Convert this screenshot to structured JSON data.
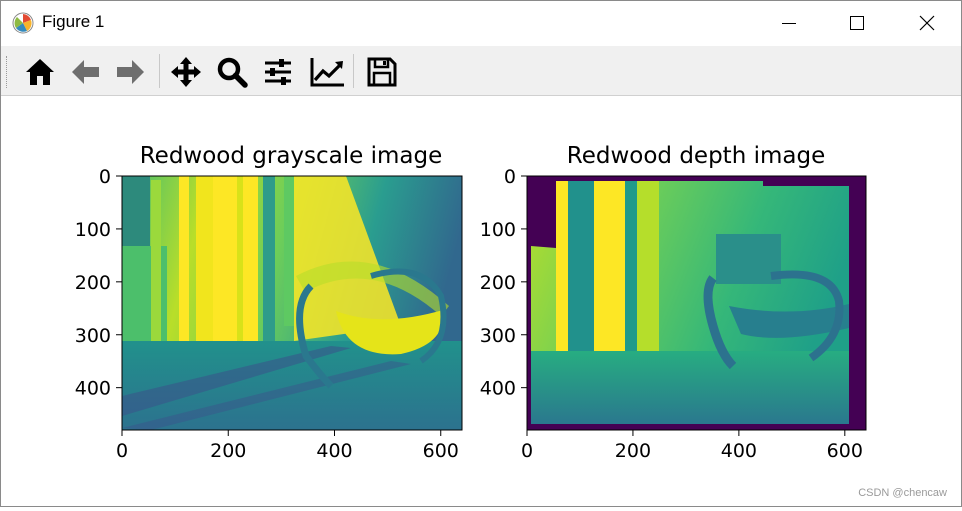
{
  "window": {
    "title": "Figure 1",
    "icons": [
      "matplotlib-app-icon",
      "minimize-icon",
      "maximize-icon",
      "close-icon"
    ]
  },
  "toolbar": {
    "buttons": [
      {
        "name": "home-button",
        "icon": "home-icon"
      },
      {
        "name": "back-button",
        "icon": "arrow-left-icon"
      },
      {
        "name": "forward-button",
        "icon": "arrow-right-icon"
      },
      {
        "name": "pan-button",
        "icon": "move-icon"
      },
      {
        "name": "zoom-button",
        "icon": "magnifier-icon"
      },
      {
        "name": "subplots-button",
        "icon": "sliders-icon"
      },
      {
        "name": "edit-axes-button",
        "icon": "line-chart-icon"
      },
      {
        "name": "save-button",
        "icon": "floppy-disk-icon"
      }
    ]
  },
  "chart_data": [
    {
      "type": "heatmap",
      "title": "Redwood grayscale image",
      "xlabel": "",
      "ylabel": "",
      "xlim": [
        0,
        640
      ],
      "ylim": [
        480,
        0
      ],
      "xticks": [
        0,
        200,
        400,
        600
      ],
      "yticks": [
        0,
        100,
        200,
        300,
        400
      ],
      "colormap": "viridis",
      "grid": false
    },
    {
      "type": "heatmap",
      "title": "Redwood depth image",
      "xlabel": "",
      "ylabel": "",
      "xlim": [
        0,
        640
      ],
      "ylim": [
        480,
        0
      ],
      "xticks": [
        0,
        200,
        400,
        600
      ],
      "yticks": [
        0,
        100,
        200,
        300,
        400
      ],
      "colormap": "viridis",
      "grid": false
    }
  ],
  "watermark": "CSDN @chencaw",
  "colors": {
    "viridis_dark": "#440154",
    "viridis_teal": "#21918c",
    "viridis_yellow": "#fde725"
  }
}
